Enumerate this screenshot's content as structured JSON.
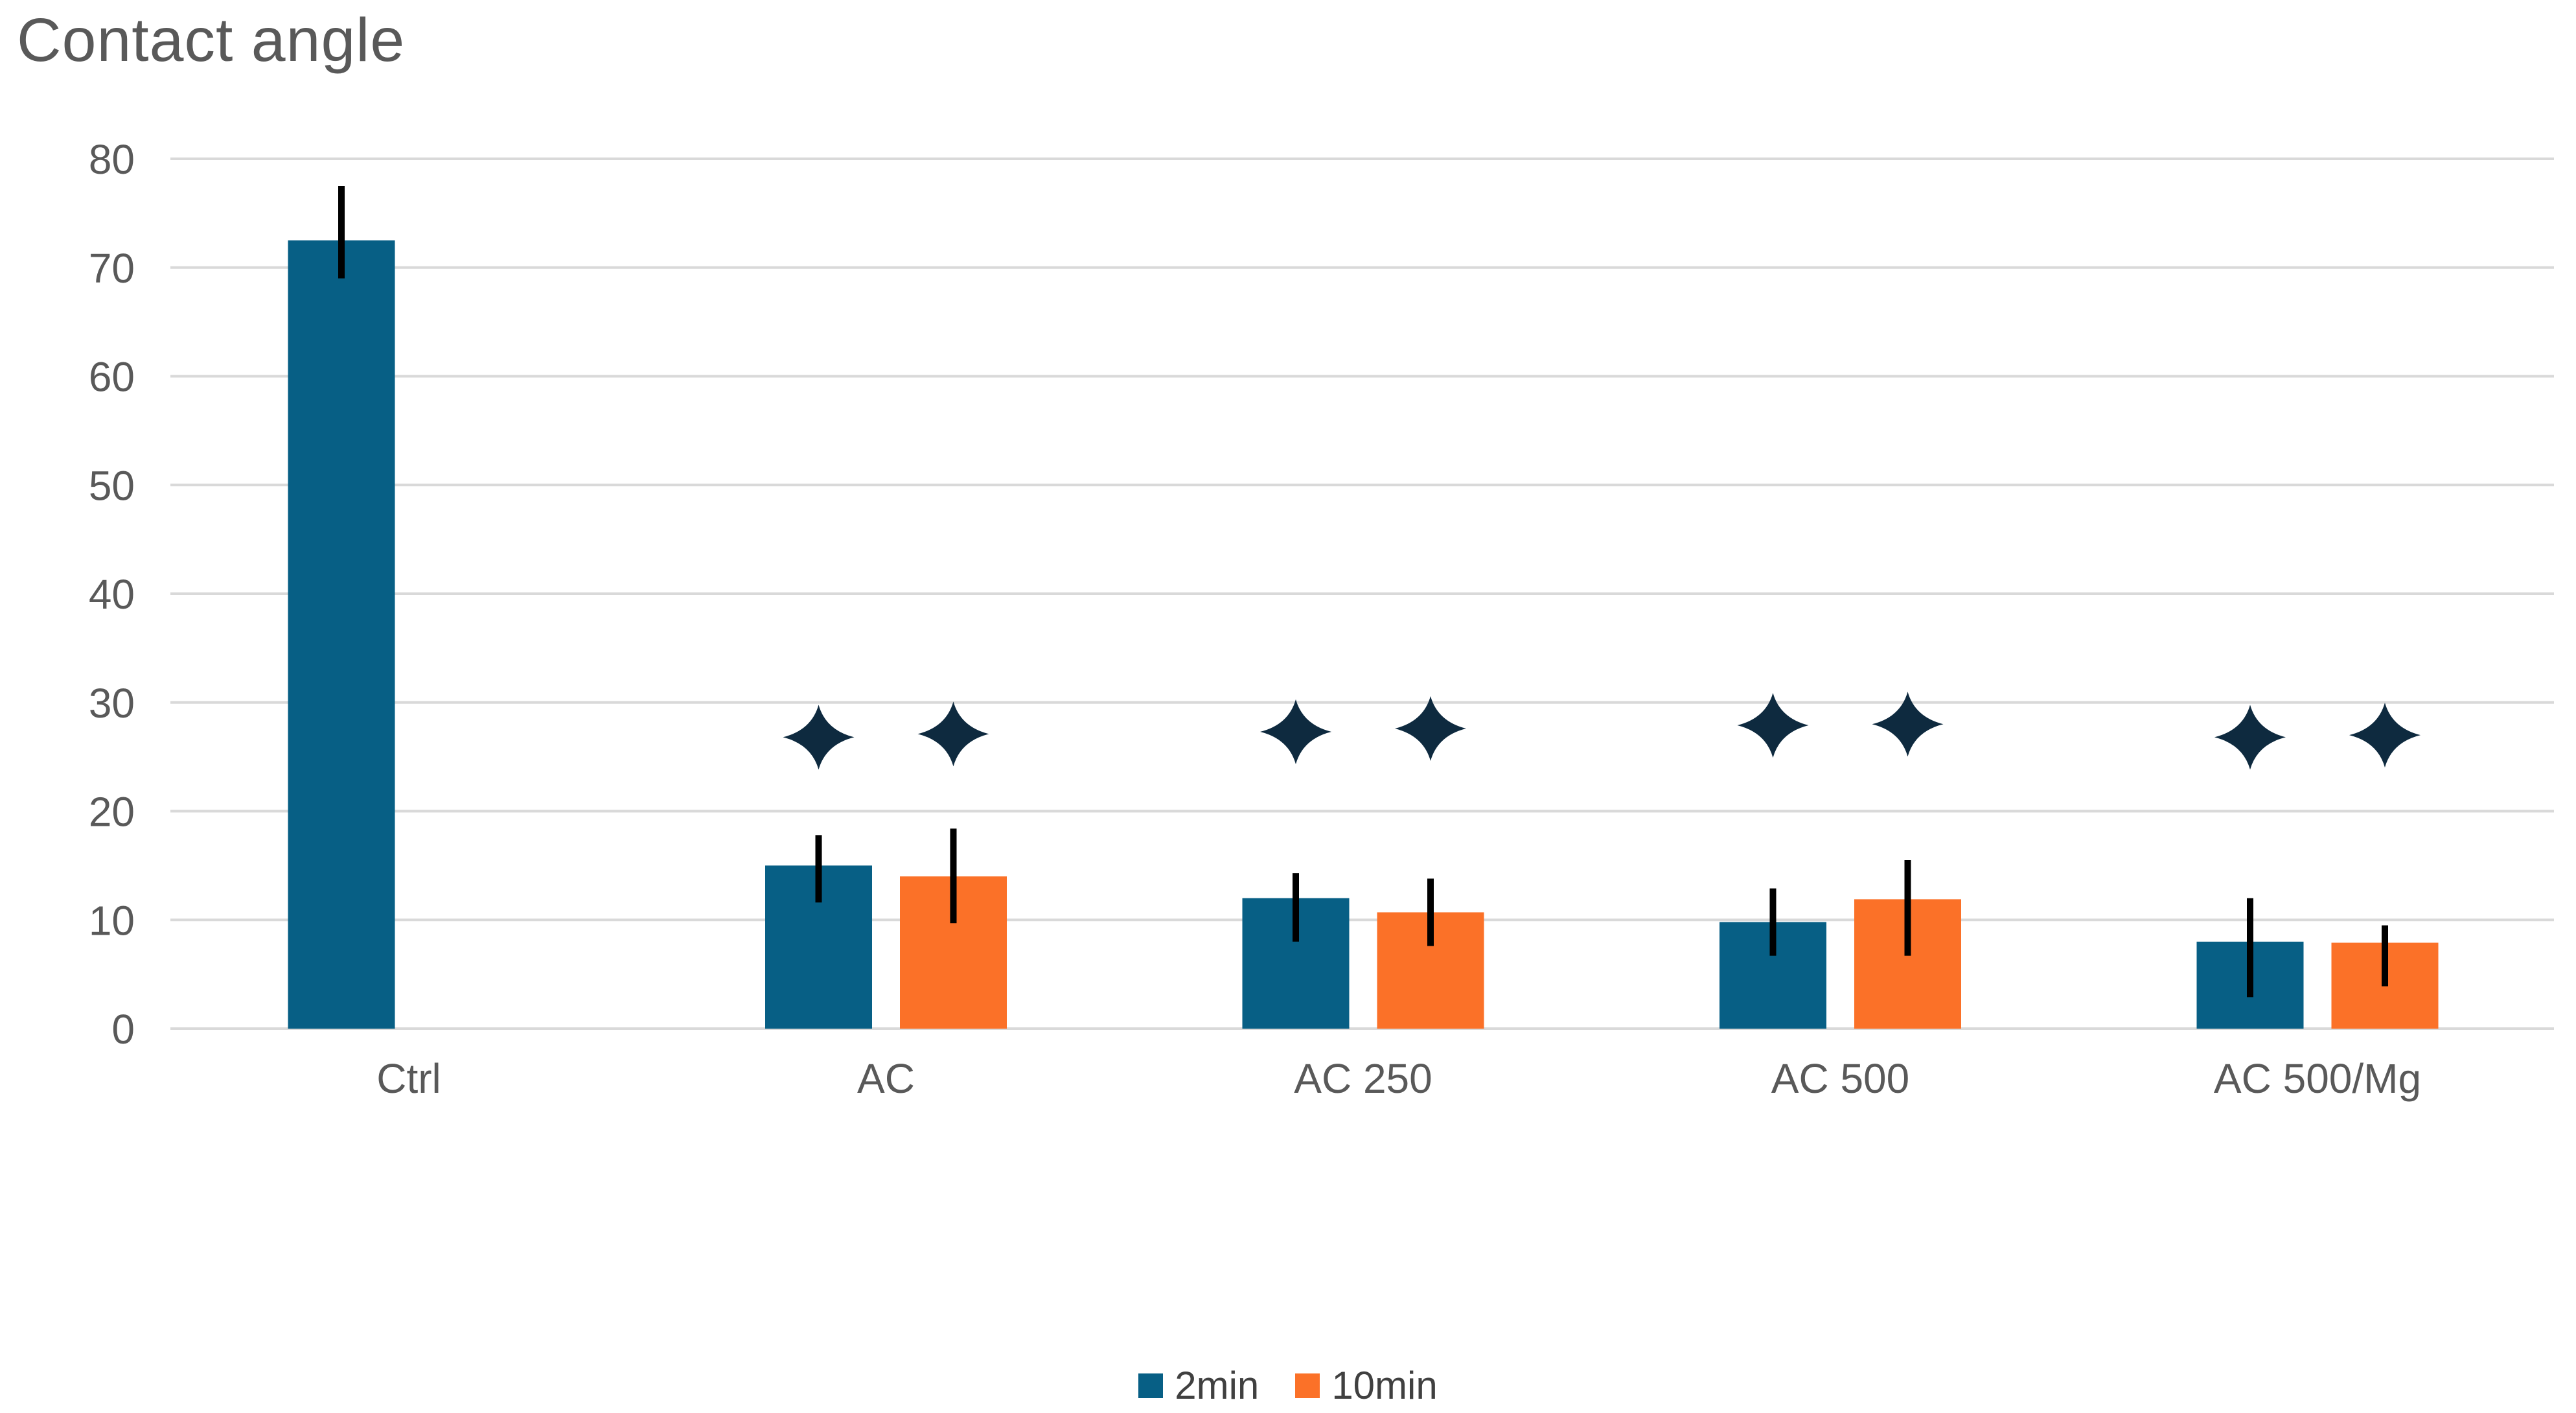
{
  "chart_data": {
    "type": "bar",
    "title": "Contact angle",
    "categories": [
      "Ctrl",
      "AC",
      "AC 250",
      "AC 500",
      "AC 500/Mg"
    ],
    "series": [
      {
        "name": "2min",
        "color": "#075F85",
        "values": [
          72.5,
          15,
          12,
          9.8,
          8
        ],
        "error_hi": [
          77.5,
          17.8,
          14.3,
          12.9,
          12.0
        ],
        "error_lo": [
          69.0,
          11.6,
          8.0,
          6.7,
          2.9
        ],
        "sig_star_y": [
          null,
          26.8,
          27.3,
          27.9,
          26.8
        ]
      },
      {
        "name": "10min",
        "color": "#FB7128",
        "values": [
          null,
          14,
          10.7,
          11.9,
          7.9
        ],
        "error_hi": [
          null,
          18.4,
          13.8,
          15.5,
          9.5
        ],
        "error_lo": [
          null,
          9.7,
          7.6,
          6.7,
          3.9
        ],
        "sig_star_y": [
          null,
          27.1,
          27.6,
          28.0,
          27.0
        ]
      }
    ],
    "ylim": [
      0,
      80
    ],
    "y_ticks": [
      0,
      10,
      20,
      30,
      40,
      50,
      60,
      70,
      80
    ],
    "xlabel": "",
    "ylabel": "",
    "grid": true,
    "legend_position": "bottom",
    "significance_marker": "four-point-star",
    "colors": {
      "marker": "#0E2A3F",
      "grid": "#D9D9D9",
      "axis_text": "#595959",
      "title_text": "#595959",
      "legend_text": "#404040",
      "error_bar": "#000000"
    }
  }
}
